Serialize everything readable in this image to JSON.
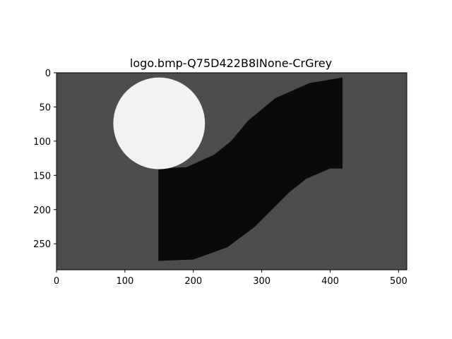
{
  "figure": {
    "title": "logo.bmp-Q75D422B8INone-CrGrey"
  },
  "image": {
    "width_units": 512,
    "height_units": 288,
    "background_color": "#4d4d4d",
    "circle_color": "#f2f2f2",
    "ribbon_color": "#0a0a0a",
    "circle": {
      "cx": 150,
      "cy": 74,
      "r": 67
    },
    "ribbon_outline": [
      [
        149,
        140
      ],
      [
        190,
        138
      ],
      [
        230,
        120
      ],
      [
        255,
        100
      ],
      [
        280,
        70
      ],
      [
        320,
        37
      ],
      [
        370,
        15
      ],
      [
        418,
        7
      ],
      [
        418,
        140
      ],
      [
        400,
        140
      ],
      [
        365,
        155
      ],
      [
        340,
        175
      ],
      [
        320,
        195
      ],
      [
        290,
        225
      ],
      [
        250,
        255
      ],
      [
        200,
        273
      ],
      [
        149,
        275
      ]
    ]
  },
  "axes": {
    "x_ticks": [
      "0",
      "100",
      "200",
      "300",
      "400",
      "500"
    ],
    "x_tick_values": [
      0,
      100,
      200,
      300,
      400,
      500
    ],
    "y_ticks": [
      "0",
      "50",
      "100",
      "150",
      "200",
      "250"
    ],
    "y_tick_values": [
      0,
      50,
      100,
      150,
      200,
      250
    ]
  }
}
